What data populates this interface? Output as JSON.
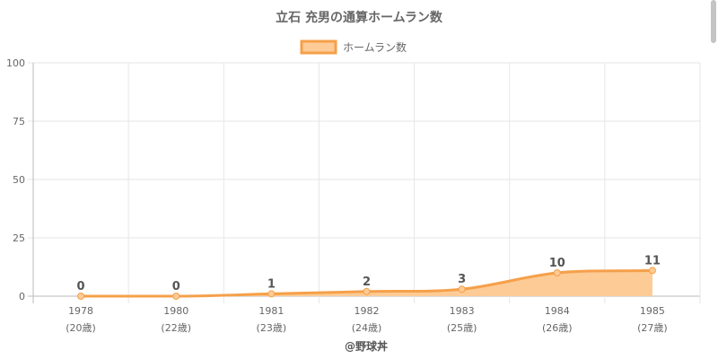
{
  "chart_data": {
    "type": "area",
    "title": "立石 充男の通算ホームラン数",
    "categories": [
      "1978",
      "1980",
      "1981",
      "1982",
      "1983",
      "1984",
      "1985"
    ],
    "age_labels": [
      "(20歳)",
      "(22歳)",
      "(23歳)",
      "(24歳)",
      "(25歳)",
      "(26歳)",
      "(27歳)"
    ],
    "series": [
      {
        "name": "ホームラン数",
        "values": [
          0,
          0,
          1,
          2,
          3,
          10,
          11
        ]
      }
    ],
    "data_labels": [
      "0",
      "0",
      "1",
      "2",
      "3",
      "10",
      "11"
    ],
    "ylim": [
      0,
      100
    ],
    "yticks": [
      "0",
      "25",
      "50",
      "75",
      "100"
    ],
    "grid": true,
    "legend_position": "top",
    "line_color": "#f5a04a",
    "fill_color": "#fdcb95",
    "footer": "@野球丼"
  }
}
